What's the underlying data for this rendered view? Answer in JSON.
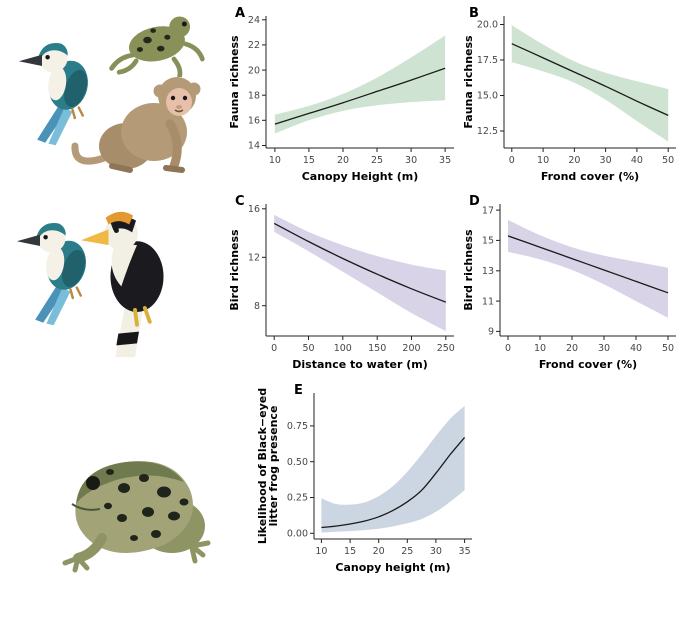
{
  "chart_data": [
    {
      "type": "line",
      "panel_label": "A",
      "title": "",
      "xlabel": "Canopy Height (m)",
      "ylabel": [
        "Fauna richness"
      ],
      "legend": "none",
      "grid": false,
      "band_color": "#cfe3d2",
      "line_color": "#1a1a1a",
      "x": [
        10,
        15,
        20,
        25,
        30,
        35
      ],
      "y": [
        15.7,
        16.55,
        17.4,
        18.3,
        19.2,
        20.15
      ],
      "lower": [
        14.95,
        16.0,
        16.75,
        17.2,
        17.45,
        17.6
      ],
      "upper": [
        16.45,
        17.15,
        18.1,
        19.4,
        21.0,
        22.75
      ],
      "xlim": [
        8.7,
        36.3
      ],
      "ylim": [
        13.8,
        24.3
      ],
      "xticks": [
        10,
        15,
        20,
        25,
        30,
        35
      ],
      "xtick_labels": [
        "10",
        "15",
        "20",
        "25",
        "30",
        "35"
      ],
      "yticks": [
        14,
        16,
        18,
        20,
        22,
        24
      ],
      "ytick_labels": [
        "14",
        "16",
        "18",
        "20",
        "22",
        "24"
      ]
    },
    {
      "type": "line",
      "panel_label": "B",
      "title": "",
      "xlabel": "Frond cover (%)",
      "ylabel": [
        "Fauna richness"
      ],
      "legend": "none",
      "grid": false,
      "band_color": "#cfe3d2",
      "line_color": "#1a1a1a",
      "x": [
        0,
        10,
        20,
        30,
        40,
        50
      ],
      "y": [
        18.65,
        17.65,
        16.65,
        15.65,
        14.6,
        13.6
      ],
      "lower": [
        17.35,
        16.7,
        15.9,
        14.7,
        13.2,
        11.75
      ],
      "upper": [
        19.95,
        18.6,
        17.4,
        16.6,
        16.0,
        15.45
      ],
      "xlim": [
        -2.5,
        52.5
      ],
      "ylim": [
        11.3,
        20.6
      ],
      "xticks": [
        0,
        10,
        20,
        30,
        40,
        50
      ],
      "xtick_labels": [
        "0",
        "10",
        "20",
        "30",
        "40",
        "50"
      ],
      "yticks": [
        12.5,
        15,
        17.5,
        20
      ],
      "ytick_labels": [
        "12.5",
        "15.0",
        "17.5",
        "20.0"
      ]
    },
    {
      "type": "line",
      "panel_label": "C",
      "title": "",
      "xlabel": "Distance to water (m)",
      "ylabel": [
        "Bird richness"
      ],
      "legend": "none",
      "grid": false,
      "band_color": "#d9d3e8",
      "line_color": "#1a1a1a",
      "x": [
        0,
        50,
        100,
        150,
        200,
        250
      ],
      "y": [
        14.8,
        13.3,
        11.9,
        10.6,
        9.4,
        8.3
      ],
      "lower": [
        14.1,
        12.5,
        10.8,
        9.1,
        7.4,
        5.9
      ],
      "upper": [
        15.5,
        14.1,
        13.0,
        12.1,
        11.4,
        10.9
      ],
      "xlim": [
        -12,
        262
      ],
      "ylim": [
        5.5,
        16.4
      ],
      "xticks": [
        0,
        50,
        100,
        150,
        200,
        250
      ],
      "xtick_labels": [
        "0",
        "50",
        "100",
        "150",
        "200",
        "250"
      ],
      "yticks": [
        8,
        12,
        16
      ],
      "ytick_labels": [
        "8",
        "12",
        "16"
      ]
    },
    {
      "type": "line",
      "panel_label": "D",
      "title": "",
      "xlabel": "Frond cover (%)",
      "ylabel": [
        "Bird richness"
      ],
      "legend": "none",
      "grid": false,
      "band_color": "#d9d3e8",
      "line_color": "#1a1a1a",
      "x": [
        0,
        10,
        20,
        30,
        40,
        50
      ],
      "y": [
        15.3,
        14.55,
        13.8,
        13.05,
        12.3,
        11.55
      ],
      "lower": [
        14.25,
        13.75,
        13.05,
        12.1,
        11.0,
        9.9
      ],
      "upper": [
        16.35,
        15.35,
        14.55,
        14.0,
        13.6,
        13.2
      ],
      "xlim": [
        -2.5,
        52.5
      ],
      "ylim": [
        8.7,
        17.4
      ],
      "xticks": [
        0,
        10,
        20,
        30,
        40,
        50
      ],
      "xtick_labels": [
        "0",
        "10",
        "20",
        "30",
        "40",
        "50"
      ],
      "yticks": [
        9,
        11,
        13,
        15,
        17
      ],
      "ytick_labels": [
        "9",
        "11",
        "13",
        "15",
        "17"
      ]
    },
    {
      "type": "line",
      "panel_label": "E",
      "title": "",
      "xlabel": "Canopy height (m)",
      "ylabel": [
        "Likelihood of Black−eyed",
        "litter frog presence"
      ],
      "legend": "none",
      "grid": false,
      "band_color": "#ccd6e2",
      "line_color": "#1a1a1a",
      "x": [
        10,
        12.5,
        15,
        17.5,
        20,
        22.5,
        25,
        27.5,
        30,
        32.5,
        35
      ],
      "y": [
        0.04,
        0.05,
        0.065,
        0.085,
        0.115,
        0.16,
        0.22,
        0.3,
        0.42,
        0.55,
        0.67
      ],
      "lower": [
        0.005,
        0.01,
        0.015,
        0.022,
        0.032,
        0.048,
        0.07,
        0.1,
        0.15,
        0.22,
        0.3
      ],
      "upper": [
        0.245,
        0.205,
        0.2,
        0.215,
        0.26,
        0.33,
        0.43,
        0.55,
        0.68,
        0.8,
        0.89
      ],
      "xlim": [
        8.7,
        36.3
      ],
      "ylim": [
        -0.04,
        0.98
      ],
      "xticks": [
        10,
        15,
        20,
        25,
        30,
        35
      ],
      "xtick_labels": [
        "10",
        "15",
        "20",
        "25",
        "30",
        "35"
      ],
      "yticks": [
        0,
        0.25,
        0.5,
        0.75
      ],
      "ytick_labels": [
        "0.00",
        "0.25",
        "0.50",
        "0.75"
      ]
    }
  ],
  "illustrations": {
    "top_group": [
      "kingfisher-illustration",
      "litter-frog-illustration",
      "macaque-illustration"
    ],
    "middle_group": [
      "kingfisher-illustration",
      "hornbill-illustration"
    ],
    "bottom_group": [
      "black-eyed-litter-frog-illustration"
    ]
  }
}
